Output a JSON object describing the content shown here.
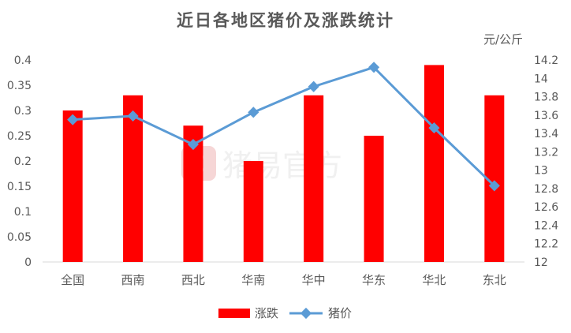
{
  "chart_data": {
    "type": "bar+line",
    "title": "近日各地区猪价及涨跌统计",
    "categories": [
      "全国",
      "西南",
      "西北",
      "华南",
      "华中",
      "华东",
      "华北",
      "东北"
    ],
    "series": [
      {
        "name": "涨跌",
        "type": "bar",
        "axis": "left",
        "color": "#ff0000",
        "values": [
          0.3,
          0.33,
          0.27,
          0.2,
          0.33,
          0.25,
          0.39,
          0.33
        ]
      },
      {
        "name": "猪价",
        "type": "line",
        "axis": "right",
        "color": "#5b9bd5",
        "values": [
          13.55,
          13.59,
          13.28,
          13.63,
          13.91,
          14.12,
          13.46,
          12.83
        ]
      }
    ],
    "y_left": {
      "min": 0,
      "max": 0.4,
      "step": 0.05,
      "ticks": [
        "0",
        "0.05",
        "0.1",
        "0.15",
        "0.2",
        "0.25",
        "0.3",
        "0.35",
        "0.4"
      ]
    },
    "y_right": {
      "min": 12,
      "max": 14.2,
      "step": 0.2,
      "unit_label": "元/公斤",
      "ticks": [
        "12",
        "12.2",
        "12.4",
        "12.6",
        "12.8",
        "13",
        "13.2",
        "13.4",
        "13.6",
        "13.8",
        "14",
        "14.2"
      ]
    },
    "legend_position": "bottom",
    "grid": false
  },
  "watermark": {
    "text": "猪易官方",
    "logo_color": "#f4cccc"
  }
}
